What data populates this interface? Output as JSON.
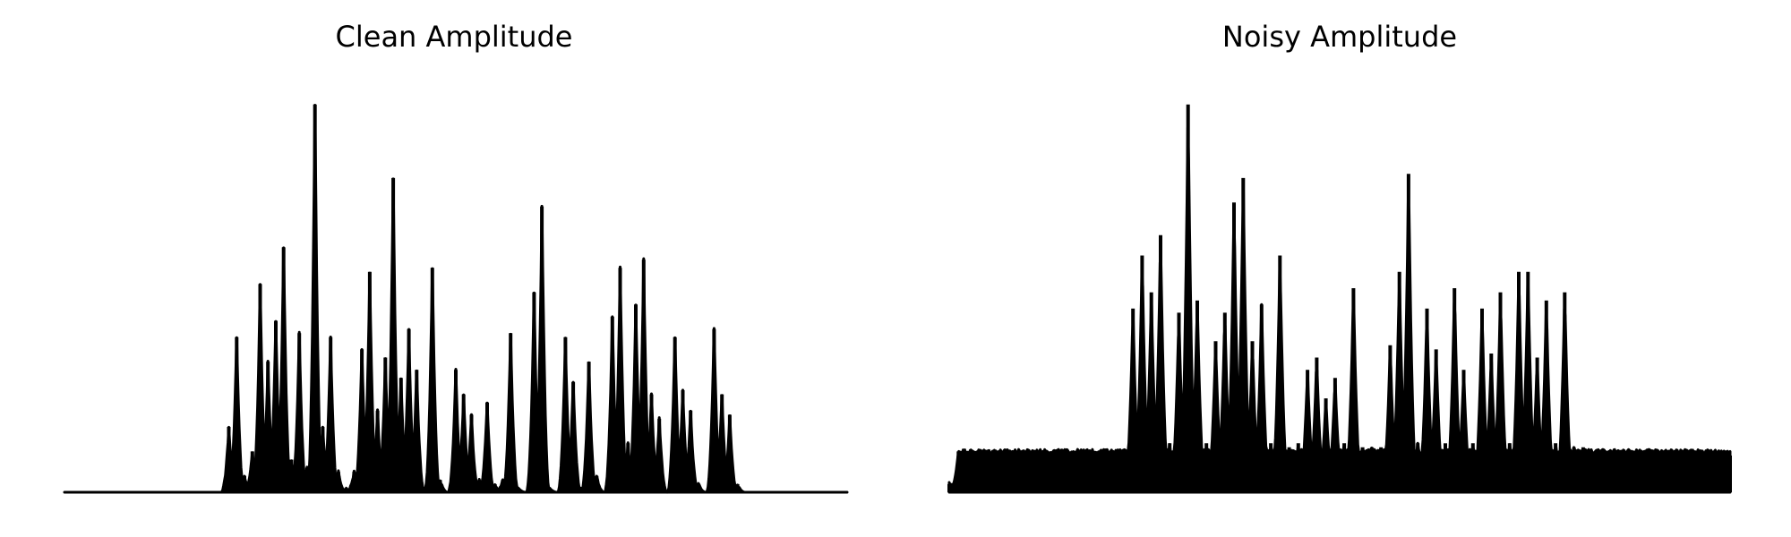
{
  "chart_data": [
    {
      "type": "area",
      "title": "Clean Amplitude",
      "xlabel": "",
      "ylabel": "",
      "axes_visible": false,
      "grid": false,
      "color": "#000000",
      "xlim": [
        0,
        100
      ],
      "ylim": [
        0,
        1.0
      ],
      "series": [
        {
          "values": [
            0,
            0,
            0,
            0,
            0,
            0,
            0,
            0,
            0,
            0,
            0,
            0,
            0,
            0,
            0,
            0,
            0,
            0,
            0,
            0,
            0,
            0.16,
            0.38,
            0.04,
            0.1,
            0.51,
            0.32,
            0.42,
            0.6,
            0.08,
            0.39,
            0.06,
            0.95,
            0.16,
            0.38,
            0.05,
            0.01,
            0.05,
            0.35,
            0.54,
            0.2,
            0.33,
            0.77,
            0.28,
            0.4,
            0.3,
            0.01,
            0.55,
            0.03,
            0,
            0.3,
            0.24,
            0.19,
            0.03,
            0.22,
            0.02,
            0.03,
            0.39,
            0.01,
            0,
            0.49,
            0.7,
            0.01,
            0,
            0.38,
            0.27,
            0.01,
            0.32,
            0.04,
            0,
            0.43,
            0.55,
            0.12,
            0.46,
            0.57,
            0.24,
            0.18,
            0,
            0.38,
            0.25,
            0.2,
            0.02,
            0,
            0.4,
            0.24,
            0.19,
            0.02,
            0,
            0,
            0,
            0,
            0,
            0,
            0,
            0,
            0,
            0,
            0,
            0,
            0,
            0
          ]
        }
      ]
    },
    {
      "type": "area",
      "title": "Noisy Amplitude",
      "xlabel": "",
      "ylabel": "",
      "axes_visible": false,
      "grid": false,
      "color": "#000000",
      "xlim": [
        0,
        100
      ],
      "ylim": [
        0,
        1.0
      ],
      "series": [
        {
          "values": [
            0.02,
            0.1,
            0.1,
            0.1,
            0.1,
            0.09,
            0.1,
            0.1,
            0.1,
            0.09,
            0.1,
            0.1,
            0.09,
            0.09,
            0.1,
            0.09,
            0.09,
            0.09,
            0.09,
            0.09,
            0.45,
            0.58,
            0.49,
            0.63,
            0.12,
            0.44,
            0.95,
            0.47,
            0.12,
            0.37,
            0.44,
            0.71,
            0.77,
            0.37,
            0.46,
            0.12,
            0.58,
            0.11,
            0.12,
            0.3,
            0.33,
            0.23,
            0.28,
            0.12,
            0.5,
            0.11,
            0.11,
            0.11,
            0.36,
            0.54,
            0.78,
            0.12,
            0.45,
            0.35,
            0.12,
            0.5,
            0.3,
            0.12,
            0.45,
            0.34,
            0.49,
            0.12,
            0.54,
            0.54,
            0.33,
            0.47,
            0.12,
            0.49,
            0.11,
            0.11,
            0.1,
            0.1,
            0.09,
            0.1,
            0.09,
            0.09,
            0.09,
            0.09,
            0.09,
            0.09,
            0.09,
            0.09,
            0.09,
            0.09,
            0.09,
            0.09
          ]
        }
      ]
    }
  ]
}
